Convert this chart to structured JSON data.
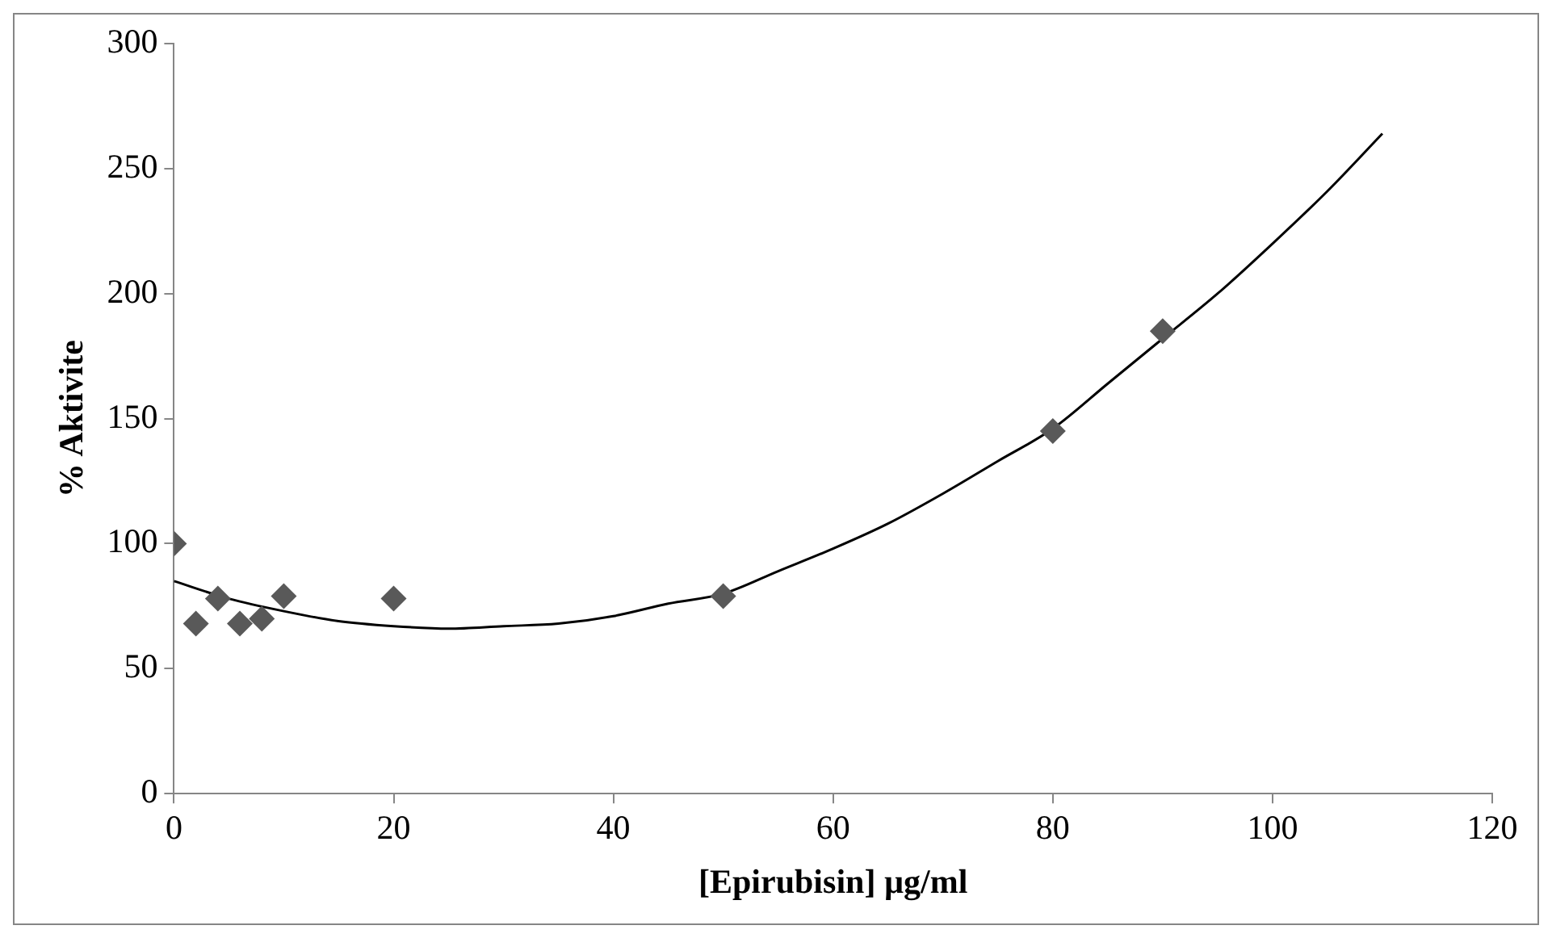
{
  "chart_data": {
    "type": "scatter",
    "xlabel": "[Epirubisin] µg/ml",
    "ylabel": "% Aktivite",
    "xlim": [
      0,
      120
    ],
    "xticks": [
      0,
      20,
      40,
      60,
      80,
      100,
      120
    ],
    "ylim": [
      0,
      300
    ],
    "yticks": [
      0,
      50,
      100,
      150,
      200,
      250,
      300
    ],
    "grid": false,
    "legend": false,
    "marker": "diamond",
    "series": [
      {
        "type": "scatter",
        "color": "#595959",
        "x": [
          0,
          2,
          4,
          6,
          8,
          10,
          20,
          50,
          80,
          90
        ],
        "values": [
          100,
          68,
          78,
          68,
          70,
          79,
          78,
          79,
          145,
          185
        ]
      },
      {
        "type": "line",
        "color": "#000000",
        "marker": "none",
        "line_style": "solid",
        "x": [
          0,
          5,
          10,
          15,
          20,
          25,
          30,
          35,
          40,
          45,
          50,
          55,
          60,
          65,
          70,
          75,
          80,
          85,
          90,
          95,
          100,
          105,
          110
        ],
        "values": [
          85,
          78,
          73,
          69,
          67,
          66,
          67,
          68,
          71,
          76,
          80,
          89,
          98,
          108,
          120,
          133,
          146,
          164,
          182,
          200,
          220,
          241,
          264
        ]
      }
    ]
  }
}
